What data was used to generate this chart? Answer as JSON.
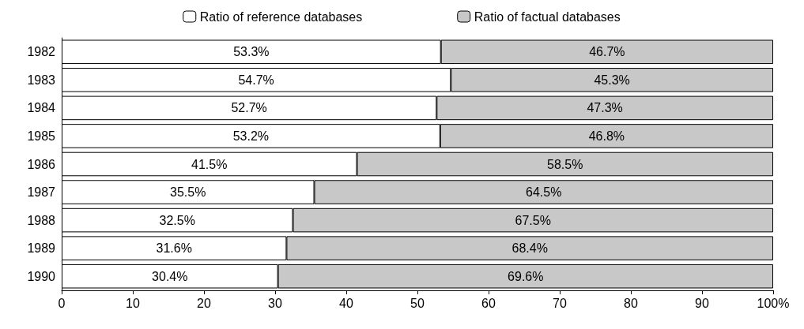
{
  "chart_data": {
    "type": "bar",
    "orientation": "horizontal",
    "stacked": true,
    "legend": "top",
    "grid": false,
    "categories": [
      "1982",
      "1983",
      "1984",
      "1985",
      "1986",
      "1987",
      "1988",
      "1989",
      "1990"
    ],
    "series": [
      {
        "name": "Ratio of reference databases",
        "color": "#ffffff",
        "values": [
          53.3,
          54.7,
          52.7,
          53.2,
          41.5,
          35.5,
          32.5,
          31.6,
          30.4
        ],
        "value_labels": [
          "53.3%",
          "54.7%",
          "52.7%",
          "53.2%",
          "41.5%",
          "35.5%",
          "32.5%",
          "31.6%",
          "30.4%"
        ]
      },
      {
        "name": "Ratio of factual databases",
        "color": "#c8c8c8",
        "values": [
          46.7,
          45.3,
          47.3,
          46.8,
          58.5,
          64.5,
          67.5,
          68.4,
          69.6
        ],
        "value_labels": [
          "46.7%",
          "45.3%",
          "47.3%",
          "46.8%",
          "58.5%",
          "64.5%",
          "67.5%",
          "68.4%",
          "69.6%"
        ]
      }
    ],
    "xlim": [
      0,
      100
    ],
    "xticks": [
      0,
      10,
      20,
      30,
      40,
      50,
      60,
      70,
      80,
      90,
      {
        "value": 100,
        "label": "100%"
      }
    ]
  }
}
